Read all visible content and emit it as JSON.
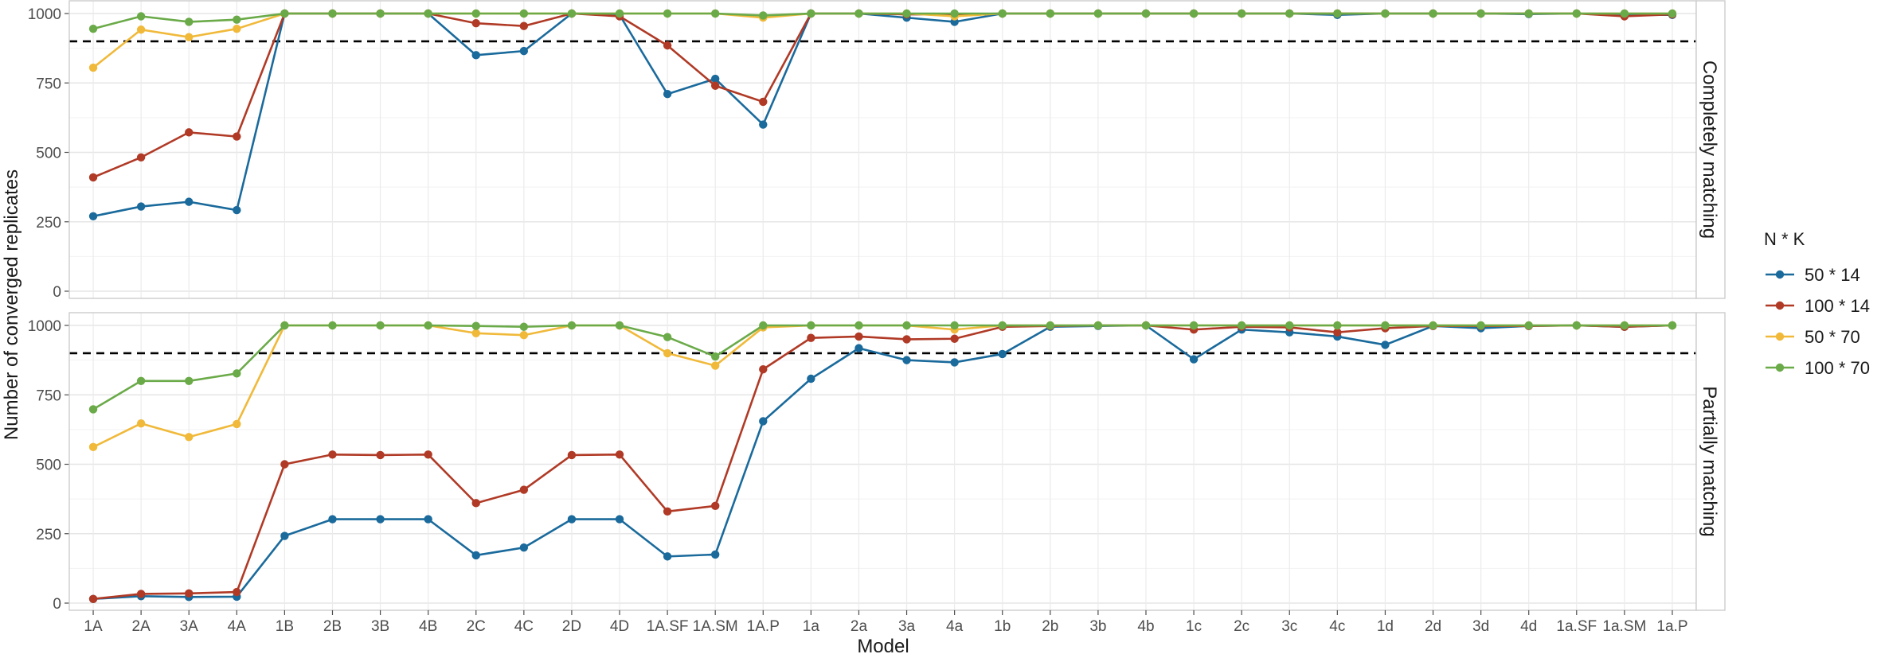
{
  "chart_data": {
    "type": "line",
    "xlabel": "Model",
    "ylabel": "Number of converged replicates",
    "ylim": [
      0,
      1000
    ],
    "yticks": [
      0,
      250,
      500,
      750,
      1000
    ],
    "reference_line": 900,
    "legend": {
      "title": "N * K",
      "placement": "right"
    },
    "categories": [
      "1A",
      "2A",
      "3A",
      "4A",
      "1B",
      "2B",
      "3B",
      "4B",
      "2C",
      "4C",
      "2D",
      "4D",
      "1A.SF",
      "1A.SM",
      "1A.P",
      "1a",
      "2a",
      "3a",
      "4a",
      "1b",
      "2b",
      "3b",
      "4b",
      "1c",
      "2c",
      "3c",
      "4c",
      "1d",
      "2d",
      "3d",
      "4d",
      "1a.SF",
      "1a.SM",
      "1a.P"
    ],
    "series_styles": [
      {
        "name": "50 * 14",
        "color": "#1a6a9c"
      },
      {
        "name": "100 * 14",
        "color": "#b03a26"
      },
      {
        "name": "50 * 70",
        "color": "#f0b93a"
      },
      {
        "name": "100 * 70",
        "color": "#6aaa48"
      }
    ],
    "panels": [
      {
        "label": "Completely matching",
        "series": [
          {
            "name": "50 * 14",
            "values": [
              270,
              305,
              322,
              292,
              1000,
              1000,
              1000,
              1000,
              850,
              865,
              1000,
              995,
              710,
              765,
              600,
              1000,
              1000,
              985,
              970,
              1000,
              1000,
              1000,
              1000,
              1000,
              1000,
              1000,
              995,
              1000,
              1000,
              1000,
              998,
              1000,
              995,
              995
            ]
          },
          {
            "name": "100 * 14",
            "values": [
              410,
              482,
              572,
              557,
              1000,
              1000,
              1000,
              1000,
              965,
              955,
              1000,
              990,
              885,
              740,
              682,
              1000,
              1000,
              997,
              997,
              1000,
              1000,
              1000,
              1000,
              1000,
              1000,
              1000,
              1000,
              1000,
              1000,
              1000,
              1000,
              1000,
              990,
              997
            ]
          },
          {
            "name": "50 * 70",
            "values": [
              805,
              942,
              915,
              945,
              1000,
              1000,
              1000,
              1000,
              1000,
              1000,
              1000,
              1000,
              1000,
              1000,
              985,
              1000,
              1000,
              1000,
              990,
              1000,
              1000,
              1000,
              1000,
              1000,
              1000,
              1000,
              1000,
              1000,
              1000,
              1000,
              1000,
              1000,
              1000,
              1000
            ]
          },
          {
            "name": "100 * 70",
            "values": [
              945,
              990,
              970,
              978,
              1000,
              1000,
              1000,
              1000,
              1000,
              1000,
              1000,
              1000,
              1000,
              1000,
              993,
              1000,
              1000,
              1000,
              1000,
              1000,
              1000,
              1000,
              1000,
              1000,
              1000,
              1000,
              1000,
              1000,
              1000,
              1000,
              1000,
              1000,
              1000,
              1000
            ]
          }
        ]
      },
      {
        "label": "Partially matching",
        "series": [
          {
            "name": "50 * 14",
            "values": [
              15,
              25,
              22,
              23,
              242,
              302,
              302,
              302,
              172,
              200,
              302,
              302,
              168,
              175,
              655,
              808,
              918,
              875,
              867,
              897,
              995,
              998,
              1000,
              878,
              985,
              975,
              960,
              930,
              998,
              990,
              998,
              1000,
              995,
              1000
            ]
          },
          {
            "name": "100 * 14",
            "values": [
              15,
              33,
              35,
              40,
              500,
              535,
              533,
              535,
              360,
              408,
              533,
              535,
              330,
              350,
              842,
              955,
              960,
              950,
              952,
              995,
              998,
              1000,
              1000,
              985,
              995,
              993,
              975,
              990,
              998,
              998,
              998,
              1000,
              995,
              1000
            ]
          },
          {
            "name": "50 * 70",
            "values": [
              562,
              647,
              598,
              645,
              1000,
              1000,
              1000,
              1000,
              972,
              965,
              1000,
              1000,
              900,
              855,
              993,
              1000,
              1000,
              1000,
              985,
              1000,
              1000,
              1000,
              1000,
              1000,
              1000,
              1000,
              1000,
              1000,
              1000,
              1000,
              1000,
              1000,
              1000,
              1000
            ]
          },
          {
            "name": "100 * 70",
            "values": [
              698,
              800,
              800,
              827,
              1000,
              1000,
              1000,
              1000,
              998,
              995,
              1000,
              1000,
              958,
              888,
              1000,
              1000,
              1000,
              1000,
              1000,
              1000,
              1000,
              1000,
              1000,
              1000,
              1000,
              1000,
              1000,
              1000,
              1000,
              1000,
              1000,
              1000,
              1000,
              1000
            ]
          }
        ]
      }
    ]
  }
}
